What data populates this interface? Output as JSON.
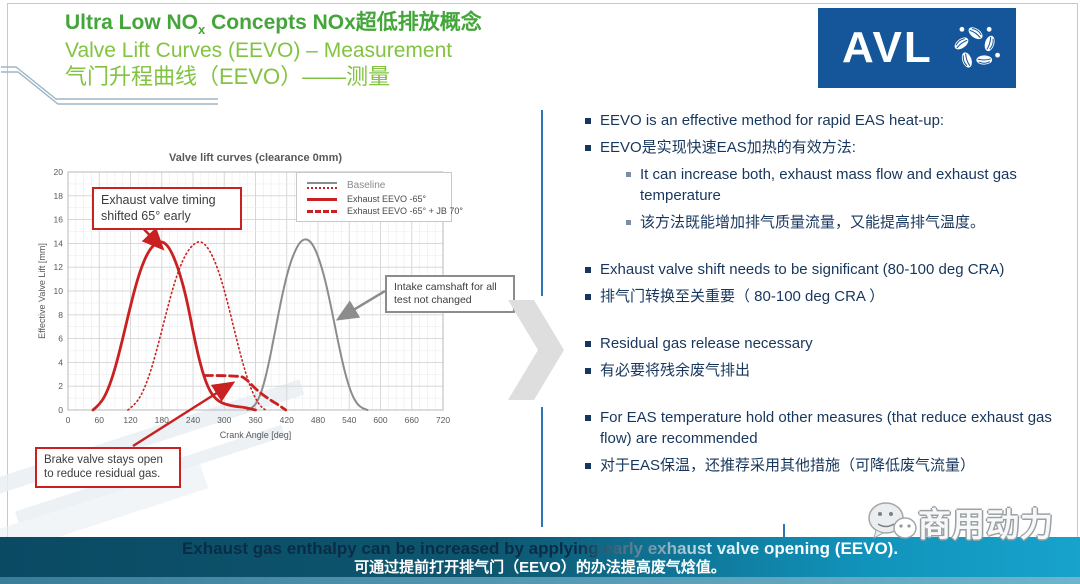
{
  "title": {
    "line1_pre": "Ultra Low NO",
    "line1_sub": "x",
    "line1_post": " Concepts NOx超低排放概念",
    "line2": "Valve Lift Curves (EEVO) – Measurement",
    "line3": "气门升程曲线（EEVO）——测量"
  },
  "logo": {
    "text": "AVL"
  },
  "chart_data": {
    "type": "line",
    "title": "Valve lift curves (clearance 0mm)",
    "xlabel": "Crank Angle [deg]",
    "ylabel": "Effective Valve Lift [mm]",
    "xlim": [
      0,
      720
    ],
    "ylim": [
      0,
      20
    ],
    "xticks": [
      0,
      60,
      120,
      180,
      240,
      300,
      360,
      420,
      480,
      540,
      600,
      660,
      720
    ],
    "yticks": [
      0,
      2,
      4,
      6,
      8,
      10,
      12,
      14,
      16,
      18,
      20
    ],
    "grid": true,
    "legend_position": "upper right",
    "legend": [
      {
        "label": "Baseline",
        "muted": true,
        "swatches": [
          {
            "style": "solid",
            "color": "#8c8c8c",
            "w": 2
          },
          {
            "style": "dotted",
            "color": "#c92121",
            "w": 2
          }
        ]
      },
      {
        "label": "Exhaust EEVO -65°",
        "swatches": [
          {
            "style": "solid",
            "color": "#c92121",
            "w": 3
          }
        ]
      },
      {
        "label": "Exhaust EEVO -65° + JB 70°",
        "swatches": [
          {
            "style": "dashed",
            "color": "#c92121",
            "w": 3
          }
        ]
      }
    ],
    "series": [
      {
        "name": "Baseline intake (not changed)",
        "style": "solid",
        "color": "#8c8c8c",
        "width": 2,
        "points": [
          [
            345,
            0
          ],
          [
            355,
            0.2
          ],
          [
            365,
            0.8
          ],
          [
            375,
            2.0
          ],
          [
            385,
            3.8
          ],
          [
            395,
            6.0
          ],
          [
            405,
            8.3
          ],
          [
            415,
            10.4
          ],
          [
            425,
            12.1
          ],
          [
            435,
            13.3
          ],
          [
            445,
            14.1
          ],
          [
            455,
            14.4
          ],
          [
            465,
            14.2
          ],
          [
            475,
            13.5
          ],
          [
            485,
            12.3
          ],
          [
            495,
            10.7
          ],
          [
            505,
            8.7
          ],
          [
            515,
            6.5
          ],
          [
            525,
            4.4
          ],
          [
            535,
            2.6
          ],
          [
            545,
            1.3
          ],
          [
            555,
            0.5
          ],
          [
            565,
            0.15
          ],
          [
            575,
            0
          ]
        ]
      },
      {
        "name": "Baseline exhaust",
        "style": "dotted",
        "color": "#c92121",
        "width": 1.6,
        "points": [
          [
            115,
            0
          ],
          [
            130,
            0.5
          ],
          [
            145,
            1.6
          ],
          [
            160,
            3.4
          ],
          [
            175,
            5.8
          ],
          [
            190,
            8.4
          ],
          [
            205,
            10.8
          ],
          [
            220,
            12.6
          ],
          [
            235,
            13.7
          ],
          [
            250,
            14.2
          ],
          [
            262,
            14.0
          ],
          [
            275,
            13.2
          ],
          [
            290,
            11.6
          ],
          [
            305,
            9.3
          ],
          [
            320,
            6.6
          ],
          [
            335,
            4.0
          ],
          [
            350,
            1.9
          ],
          [
            362,
            0.8
          ],
          [
            372,
            0.2
          ],
          [
            380,
            0
          ]
        ]
      },
      {
        "name": "Exhaust EEVO -65°",
        "style": "solid",
        "color": "#c92121",
        "width": 2.8,
        "points": [
          [
            48,
            0
          ],
          [
            62,
            0.5
          ],
          [
            76,
            1.6
          ],
          [
            90,
            3.4
          ],
          [
            104,
            5.8
          ],
          [
            118,
            8.4
          ],
          [
            132,
            10.8
          ],
          [
            146,
            12.6
          ],
          [
            160,
            13.7
          ],
          [
            175,
            14.2
          ],
          [
            188,
            14.0
          ],
          [
            200,
            13.2
          ],
          [
            214,
            11.6
          ],
          [
            228,
            9.3
          ],
          [
            240,
            6.6
          ],
          [
            252,
            4.2
          ],
          [
            264,
            2.4
          ],
          [
            276,
            1.3
          ],
          [
            290,
            0.7
          ],
          [
            305,
            0.45
          ],
          [
            320,
            0.3
          ],
          [
            335,
            0.25
          ],
          [
            350,
            0.1
          ],
          [
            360,
            0
          ]
        ]
      },
      {
        "name": "Exhaust EEVO -65° + JB 70°",
        "style": "dashed",
        "color": "#c92121",
        "width": 2.8,
        "points": [
          [
            262,
            2.9
          ],
          [
            330,
            2.9
          ],
          [
            342,
            2.6
          ],
          [
            355,
            2.0
          ],
          [
            370,
            1.4
          ],
          [
            390,
            0.8
          ],
          [
            405,
            0.4
          ],
          [
            418,
            0
          ]
        ]
      }
    ],
    "annotations": [
      {
        "text": "Exhaust valve timing shifted 65° early",
        "border": "#c92121"
      },
      {
        "text": "Intake camshaft for all test not changed",
        "border": "#8c8c8c"
      },
      {
        "text": "Brake valve stays open to reduce residual gas.",
        "border": "#c92121"
      }
    ]
  },
  "bullets": [
    {
      "level": 1,
      "text": "EEVO is an effective method for rapid EAS heat-up:"
    },
    {
      "level": 1,
      "text": "EEVO是实现快速EAS加热的有效方法:"
    },
    {
      "level": 2,
      "text": "It can increase both, exhaust mass flow and exhaust gas temperature"
    },
    {
      "level": 2,
      "text": "该方法既能增加排气质量流量，又能提高排气温度。"
    },
    {
      "level": 1,
      "gap": true,
      "text": "Exhaust valve shift needs to be significant (80-100 deg CRA)"
    },
    {
      "level": 1,
      "text": "排气门转换至关重要（ 80-100 deg CRA ）"
    },
    {
      "level": 1,
      "gap": true,
      "text": "Residual gas release necessary"
    },
    {
      "level": 1,
      "text": "有必要将残余废气排出"
    },
    {
      "level": 1,
      "gap": true,
      "text": "For EAS temperature hold other measures (that reduce exhaust gas flow) are recommended"
    },
    {
      "level": 1,
      "text": "对于EAS保温，还推荐采用其他措施（可降低废气流量）"
    }
  ],
  "banner": {
    "line1": "Exhaust gas enthalpy can be increased by applying early exhaust valve opening (EEVO).",
    "line2": "可通过提前打开排气门（EEVO）的办法提高废气焓值。"
  },
  "watermark": {
    "text": "商用动力"
  },
  "colors": {
    "title_green_bold": "#44a53a",
    "title_green": "#82c341",
    "body_navy": "#17365d",
    "avl_blue": "#15569a",
    "divider_blue": "#2e75b6",
    "chart_red": "#c92121",
    "chart_gray": "#8c8c8c",
    "banner_dark": "#0b4a63",
    "banner_cyan": "#17a3cc"
  }
}
